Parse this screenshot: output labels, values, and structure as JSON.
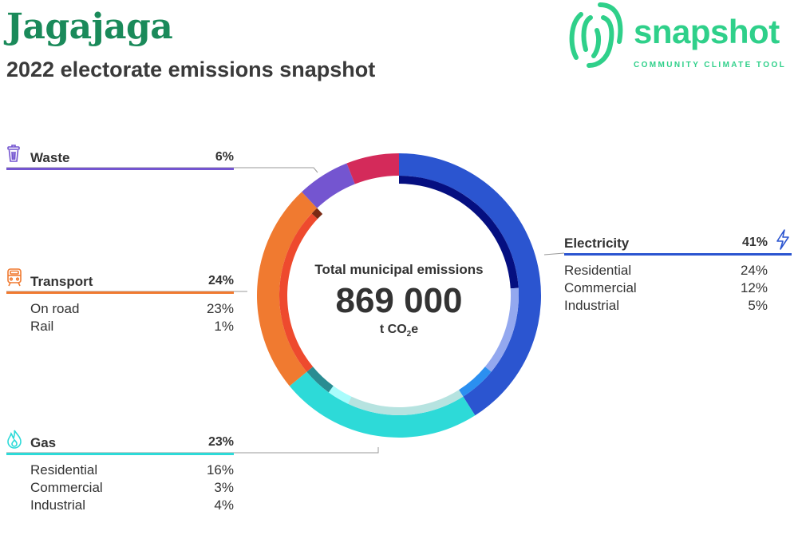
{
  "header": {
    "title": "Jagajaga",
    "subtitle": "2022 electorate emissions snapshot"
  },
  "logo": {
    "wordmark": "snapshot",
    "tagline": "COMMUNITY CLIMATE TOOL",
    "color": "#2fd08a"
  },
  "center": {
    "label": "Total municipal emissions",
    "value": "869 000",
    "unit_prefix": "t CO",
    "unit_sub": "2",
    "unit_suffix": "e"
  },
  "chart_data": {
    "type": "pie",
    "total": 869000,
    "unit": "t CO2e",
    "categories": [
      {
        "key": "electricity",
        "name": "Electricity",
        "pct_label": "41%",
        "value": 41,
        "color": "#2b55d0",
        "icon": "lightning-bolt-icon",
        "subs": [
          {
            "name": "Residential",
            "pct_label": "24%",
            "value": 24,
            "color": "#050f80"
          },
          {
            "name": "Commercial",
            "pct_label": "12%",
            "value": 12,
            "color": "#93a8ef"
          },
          {
            "name": "Industrial",
            "pct_label": "5%",
            "value": 5,
            "color": "#2b8ff0"
          }
        ]
      },
      {
        "key": "gas",
        "name": "Gas",
        "pct_label": "23%",
        "value": 23,
        "color": "#2ddad8",
        "icon": "flame-icon",
        "subs": [
          {
            "name": "Residential",
            "pct_label": "16%",
            "value": 16,
            "color": "#b6e3e0"
          },
          {
            "name": "Commercial",
            "pct_label": "3%",
            "value": 3,
            "color": "#a8fcfc"
          },
          {
            "name": "Industrial",
            "pct_label": "4%",
            "value": 4,
            "color": "#2a8c92"
          }
        ]
      },
      {
        "key": "transport",
        "name": "Transport",
        "pct_label": "24%",
        "value": 24,
        "color": "#f07a30",
        "icon": "train-icon",
        "subs": [
          {
            "name": "On road",
            "pct_label": "23%",
            "value": 23,
            "color": "#ee4a2e"
          },
          {
            "name": "Rail",
            "pct_label": "1%",
            "value": 1,
            "color": "#7a2a14"
          }
        ]
      },
      {
        "key": "waste",
        "name": "Waste",
        "pct_label": "6%",
        "value": 6,
        "color": "#7455d0",
        "icon": "bin-icon",
        "subs": []
      },
      {
        "key": "other",
        "name": "",
        "pct_label": "",
        "value": 6,
        "color": "#d42a5a",
        "icon": "",
        "subs": []
      }
    ]
  }
}
